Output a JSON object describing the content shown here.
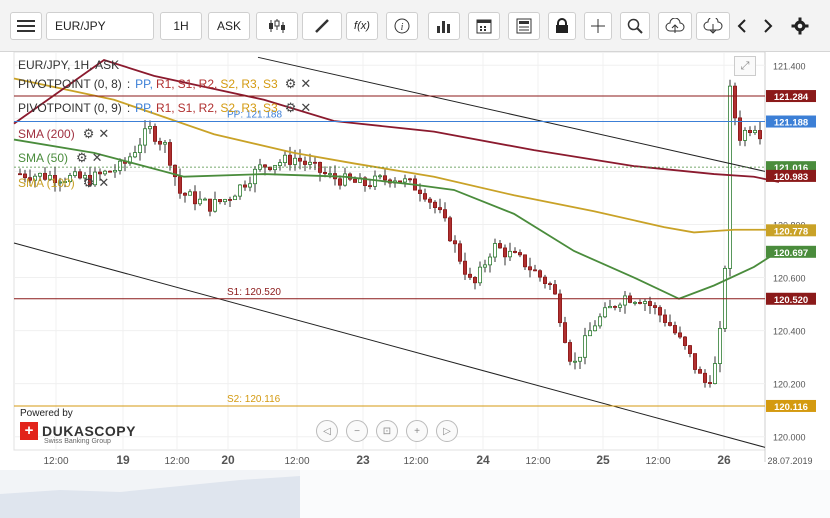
{
  "toolbar": {
    "symbol": "EUR/JPY",
    "timeframe": "1H",
    "side": "ASK",
    "icons": [
      "menu-icon",
      "candle-style-icon",
      "draw-pen-icon",
      "fx-icon",
      "info-icon",
      "bars-icon",
      "calendar-icon",
      "news-icon",
      "lock-icon",
      "crosshair-icon",
      "zoom-icon",
      "upload-icon",
      "download-icon",
      "chevron-left-icon",
      "chevron-right-icon",
      "gear-icon"
    ],
    "fx_label": "f(x)"
  },
  "header": {
    "title": "EUR/JPY, 1H, ASK"
  },
  "legend": [
    {
      "prefix": "PIVOTPOINT (0, 8)",
      "levels": [
        "PP,",
        "R1,",
        "S1,",
        "R2,",
        "S2,",
        "R3,",
        "S3"
      ],
      "colors": [
        "#3c7fd6",
        "#b03030",
        "#b03030",
        "#b03030",
        "#d49a10",
        "#d49a10",
        "#d49a10"
      ]
    },
    {
      "prefix": "PIVOTPOINT (0, 9)",
      "levels": [
        "PP,",
        "R1,",
        "S1,",
        "R2,",
        "S2,",
        "R3,",
        "S3"
      ],
      "colors": [
        "#3c7fd6",
        "#b03030",
        "#b03030",
        "#b03030",
        "#d49a10",
        "#d49a10",
        "#d49a10"
      ]
    },
    {
      "prefix": "SMA (200)",
      "color": "#a03040"
    },
    {
      "prefix": "SMA (50)",
      "color": "#4a8c3c"
    },
    {
      "prefix": "SMA (100)",
      "color": "#c9a227"
    }
  ],
  "legend_separator": ":",
  "branding": {
    "powered": "Powered by",
    "name": "DUKASCOPY",
    "sub": "Swiss Banking Group",
    "cross": "+"
  },
  "chart_data": {
    "type": "candlestick",
    "title": "EUR/JPY, 1H, ASK",
    "y_ticks": [
      121.4,
      121.2,
      121.0,
      120.8,
      120.6,
      120.4,
      120.2,
      120.0
    ],
    "y_tick_labels": [
      "121.400",
      "121.200",
      "121.000",
      "120.800",
      "120.600",
      "120.400",
      "120.200",
      "120.000"
    ],
    "ylim": [
      119.95,
      121.45
    ],
    "x_labels": [
      "12:00",
      "19",
      "12:00",
      "20",
      "12:00",
      "23",
      "12:00",
      "24",
      "12:00",
      "25",
      "12:00",
      "26",
      "28.07.2019"
    ],
    "candles_per_day": 24,
    "close_path": [
      [
        "2019-07-18 12:00",
        120.98
      ],
      [
        "2019-07-18 18:00",
        120.97
      ],
      [
        "2019-07-19 00:00",
        121.02
      ],
      [
        "2019-07-19 06:00",
        121.16
      ],
      [
        "2019-07-19 10:00",
        121.09
      ],
      [
        "2019-07-19 13:00",
        120.92
      ],
      [
        "2019-07-19 20:00",
        120.87
      ],
      [
        "2019-07-20 00:00",
        120.9
      ],
      [
        "2019-07-20 06:00",
        121.02
      ],
      [
        "2019-07-20 12:00",
        121.05
      ],
      [
        "2019-07-20 18:00",
        120.98
      ],
      [
        "2019-07-23 00:00",
        120.95
      ],
      [
        "2019-07-23 06:00",
        120.98
      ],
      [
        "2019-07-23 12:00",
        120.93
      ],
      [
        "2019-07-23 16:00",
        120.82
      ],
      [
        "2019-07-23 22:00",
        120.56
      ],
      [
        "2019-07-24 02:00",
        120.72
      ],
      [
        "2019-07-24 08:00",
        120.66
      ],
      [
        "2019-07-24 14:00",
        120.56
      ],
      [
        "2019-07-24 18:00",
        120.26
      ],
      [
        "2019-07-24 22:00",
        120.42
      ],
      [
        "2019-07-25 04:00",
        120.53
      ],
      [
        "2019-07-25 08:00",
        120.52
      ],
      [
        "2019-07-25 13:00",
        120.43
      ],
      [
        "2019-07-25 17:00",
        120.31
      ],
      [
        "2019-07-25 20:00",
        120.2
      ],
      [
        "2019-07-25 22:00",
        120.24
      ],
      [
        "2019-07-26 00:00",
        120.48
      ],
      [
        "2019-07-26 01:00",
        121.32
      ],
      [
        "2019-07-26 03:00",
        121.13
      ],
      [
        "2019-07-26 06:00",
        121.18
      ],
      [
        "2019-07-26 12:00",
        121.02
      ],
      [
        "2019-07-26 16:00",
        121.05
      ],
      [
        "2019-07-26 22:00",
        120.99
      ]
    ],
    "sma200": [
      [
        0,
        121.18
      ],
      [
        90,
        121.42
      ],
      [
        140,
        121.36
      ],
      [
        250,
        121.27
      ],
      [
        320,
        121.19
      ],
      [
        420,
        121.15
      ],
      [
        520,
        121.08
      ],
      [
        620,
        121.02
      ],
      [
        700,
        120.99
      ],
      [
        740,
        120.98
      ],
      [
        765,
        120.96
      ]
    ],
    "sma50": [
      [
        0,
        121.12
      ],
      [
        80,
        121.07
      ],
      [
        170,
        120.98
      ],
      [
        250,
        120.99
      ],
      [
        330,
        120.98
      ],
      [
        400,
        120.95
      ],
      [
        440,
        120.93
      ],
      [
        500,
        120.84
      ],
      [
        560,
        120.7
      ],
      [
        620,
        120.6
      ],
      [
        665,
        120.52
      ],
      [
        700,
        120.57
      ],
      [
        740,
        120.64
      ],
      [
        765,
        120.7
      ]
    ],
    "sma100": [
      [
        0,
        121.35
      ],
      [
        100,
        121.27
      ],
      [
        200,
        121.14
      ],
      [
        280,
        121.07
      ],
      [
        340,
        121.03
      ],
      [
        420,
        120.98
      ],
      [
        500,
        120.91
      ],
      [
        580,
        120.85
      ],
      [
        650,
        120.79
      ],
      [
        680,
        120.77
      ],
      [
        720,
        120.78
      ],
      [
        765,
        120.78
      ]
    ],
    "trendlines": [
      {
        "from": [
          258,
          121.43
        ],
        "to": [
          765,
          121.0
        ]
      },
      {
        "from": [
          14,
          120.73
        ],
        "to": [
          765,
          119.96
        ]
      }
    ],
    "horizontal_levels": [
      {
        "label": "",
        "value": 121.284,
        "tag": "121.284",
        "color": "#8b1a1a"
      },
      {
        "label": "PP: 121.188",
        "value": 121.188,
        "tag": "121.188",
        "color": "#3c7fd6"
      },
      {
        "label": "S1: 120.520",
        "value": 120.52,
        "tag": "120.520",
        "color": "#8b1a1a"
      },
      {
        "label": "S2: 120.116",
        "value": 120.116,
        "tag": "120.116",
        "color": "#d49a10"
      }
    ],
    "price_tags": [
      {
        "value": 121.016,
        "tag": "121.016",
        "color": "#4a8c3c"
      },
      {
        "value": 120.983,
        "tag": "120.983",
        "color": "#8b1a1a"
      },
      {
        "value": 120.778,
        "tag": "120.778",
        "color": "#c9a227"
      },
      {
        "value": 120.697,
        "tag": "120.697",
        "color": "#4a8c3c"
      }
    ],
    "current_price": 121.016,
    "grid": true
  }
}
